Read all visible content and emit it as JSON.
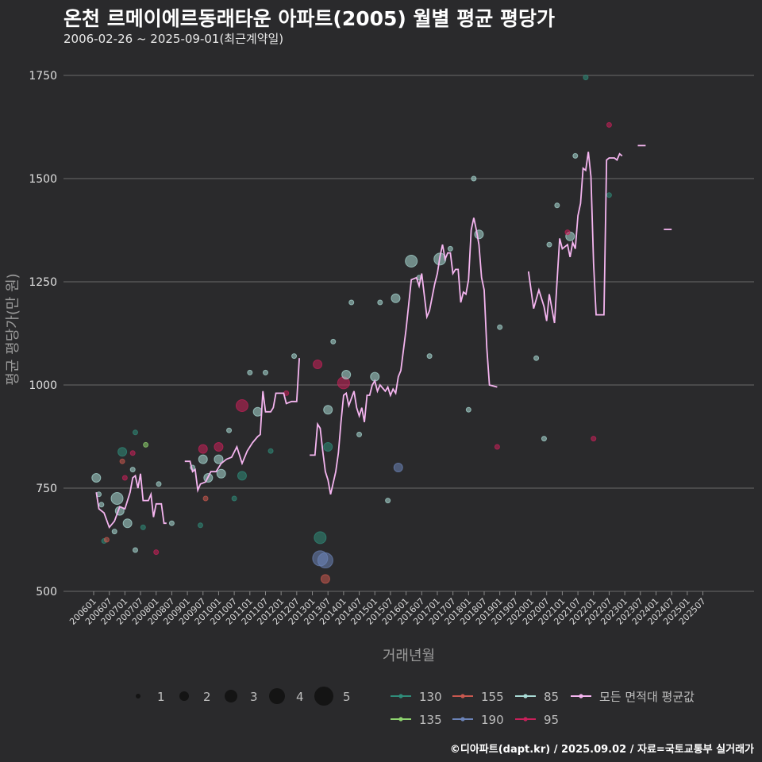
{
  "title": "온천 르메이에르동래타운 아파트(2005) 월별 평균 평당가",
  "subtitle": "2006-02-26 ~ 2025-09-01(최근계약일)",
  "footer": "©디아파트(dapt.kr) / 2025.09.02 / 자료=국토교통부 실거래가",
  "colors": {
    "background": "#2a2a2c",
    "grid": "#6a6a6a",
    "avg_line": "#f5b5f0",
    "s130": "#2f8c7a",
    "s135": "#8ed36f",
    "s155": "#c9584f",
    "s190": "#6b83b8",
    "s85": "#a9dbd6",
    "s95": "#c8205a"
  },
  "chart_data": {
    "type": "scatter+line",
    "xlabel": "거래년월",
    "ylabel": "평균 평당가(만 원)",
    "ylim": [
      500,
      1750
    ],
    "yticks": [
      "500",
      "750",
      "1000",
      "1250",
      "1500",
      "1750"
    ],
    "xlim": [
      "200601",
      "202507"
    ],
    "xticks": [
      "200601",
      "200607",
      "200701",
      "200707",
      "200801",
      "200807",
      "200901",
      "200907",
      "201001",
      "201007",
      "201101",
      "201107",
      "201201",
      "201207",
      "201301",
      "201307",
      "201401",
      "201407",
      "201501",
      "201507",
      "201601",
      "201607",
      "201701",
      "201707",
      "201801",
      "201807",
      "201901",
      "201907",
      "202001",
      "202007",
      "202101",
      "202107",
      "202201",
      "202207",
      "202301",
      "202307",
      "202401",
      "202407",
      "202501",
      "202507"
    ],
    "size_legend": {
      "labels": [
        "1",
        "2",
        "3",
        "4",
        "5"
      ]
    },
    "series_legend": [
      {
        "label": "130",
        "color_key": "s130"
      },
      {
        "label": "155",
        "color_key": "s155"
      },
      {
        "label": "85",
        "color_key": "s85"
      },
      {
        "label": "모든 면적대 평균값",
        "color_key": "avg_line"
      },
      {
        "label": "135",
        "color_key": "s135"
      },
      {
        "label": "190",
        "color_key": "s190"
      },
      {
        "label": "95",
        "color_key": "s95"
      }
    ],
    "avg_line_segments": [
      [
        [
          "2006-02",
          740
        ],
        [
          "2006-03",
          700
        ],
        [
          "2006-05",
          690
        ],
        [
          "2006-07",
          655
        ],
        [
          "2006-09",
          670
        ],
        [
          "2006-11",
          705
        ],
        [
          "2007-01",
          700
        ],
        [
          "2007-03",
          740
        ],
        [
          "2007-04",
          775
        ],
        [
          "2007-05",
          780
        ],
        [
          "2007-06",
          750
        ],
        [
          "2007-07",
          785
        ],
        [
          "2007-08",
          720
        ],
        [
          "2007-10",
          720
        ],
        [
          "2007-11",
          735
        ],
        [
          "2007-12",
          680
        ],
        [
          "2008-01",
          712
        ],
        [
          "2008-03",
          712
        ],
        [
          "2008-04",
          665
        ],
        [
          "2008-05",
          665
        ]
      ],
      [
        [
          "2008-12",
          815
        ],
        [
          "2009-02",
          815
        ],
        [
          "2009-03",
          790
        ],
        [
          "2009-04",
          795
        ],
        [
          "2009-05",
          745
        ],
        [
          "2009-06",
          760
        ],
        [
          "2009-08",
          765
        ],
        [
          "2009-10",
          790
        ],
        [
          "2009-12",
          790
        ],
        [
          "2010-02",
          810
        ],
        [
          "2010-04",
          820
        ],
        [
          "2010-06",
          825
        ],
        [
          "2010-08",
          850
        ],
        [
          "2010-10",
          810
        ],
        [
          "2010-12",
          840
        ],
        [
          "2011-02",
          860
        ],
        [
          "2011-04",
          875
        ],
        [
          "2011-05",
          880
        ],
        [
          "2011-06",
          985
        ],
        [
          "2011-07",
          935
        ],
        [
          "2011-09",
          935
        ],
        [
          "2011-10",
          945
        ],
        [
          "2011-11",
          980
        ],
        [
          "2012-02",
          980
        ],
        [
          "2012-03",
          955
        ],
        [
          "2012-05",
          960
        ],
        [
          "2012-07",
          960
        ],
        [
          "2012-08",
          1065
        ]
      ],
      [
        [
          "2012-12",
          830
        ],
        [
          "2013-02",
          830
        ],
        [
          "2013-03",
          905
        ],
        [
          "2013-04",
          895
        ],
        [
          "2013-05",
          840
        ],
        [
          "2013-06",
          790
        ],
        [
          "2013-07",
          770
        ],
        [
          "2013-08",
          735
        ],
        [
          "2013-10",
          790
        ],
        [
          "2013-11",
          835
        ],
        [
          "2013-12",
          910
        ],
        [
          "2014-01",
          975
        ],
        [
          "2014-02",
          980
        ],
        [
          "2014-03",
          950
        ],
        [
          "2014-05",
          985
        ],
        [
          "2014-06",
          945
        ],
        [
          "2014-07",
          925
        ],
        [
          "2014-08",
          945
        ],
        [
          "2014-09",
          910
        ],
        [
          "2014-10",
          975
        ],
        [
          "2014-11",
          975
        ],
        [
          "2014-12",
          1000
        ],
        [
          "2015-01",
          1010
        ],
        [
          "2015-02",
          985
        ],
        [
          "2015-03",
          1000
        ],
        [
          "2015-05",
          985
        ],
        [
          "2015-06",
          995
        ],
        [
          "2015-07",
          975
        ],
        [
          "2015-08",
          990
        ],
        [
          "2015-09",
          980
        ],
        [
          "2015-10",
          1020
        ],
        [
          "2015-11",
          1035
        ],
        [
          "2016-01",
          1135
        ],
        [
          "2016-03",
          1255
        ],
        [
          "2016-05",
          1260
        ],
        [
          "2016-06",
          1240
        ],
        [
          "2016-07",
          1270
        ],
        [
          "2016-09",
          1165
        ],
        [
          "2016-10",
          1180
        ],
        [
          "2016-12",
          1245
        ],
        [
          "2017-01",
          1270
        ],
        [
          "2017-02",
          1310
        ],
        [
          "2017-03",
          1340
        ],
        [
          "2017-04",
          1305
        ],
        [
          "2017-05",
          1320
        ],
        [
          "2017-06",
          1320
        ],
        [
          "2017-07",
          1270
        ],
        [
          "2017-08",
          1280
        ],
        [
          "2017-09",
          1280
        ],
        [
          "2017-10",
          1200
        ],
        [
          "2017-11",
          1225
        ],
        [
          "2017-12",
          1220
        ],
        [
          "2018-01",
          1255
        ],
        [
          "2018-02",
          1375
        ],
        [
          "2018-03",
          1405
        ],
        [
          "2018-04",
          1375
        ],
        [
          "2018-05",
          1340
        ],
        [
          "2018-06",
          1260
        ],
        [
          "2018-07",
          1230
        ],
        [
          "2018-08",
          1090
        ],
        [
          "2018-09",
          1000
        ],
        [
          "2018-12",
          995
        ]
      ],
      [
        [
          "2019-12",
          1275
        ],
        [
          "2020-02",
          1185
        ],
        [
          "2020-04",
          1230
        ],
        [
          "2020-06",
          1190
        ],
        [
          "2020-07",
          1155
        ],
        [
          "2020-08",
          1220
        ],
        [
          "2020-10",
          1150
        ],
        [
          "2020-12",
          1355
        ],
        [
          "2021-01",
          1330
        ],
        [
          "2021-03",
          1340
        ],
        [
          "2021-04",
          1310
        ],
        [
          "2021-05",
          1345
        ],
        [
          "2021-06",
          1330
        ],
        [
          "2021-07",
          1410
        ],
        [
          "2021-08",
          1440
        ],
        [
          "2021-09",
          1525
        ],
        [
          "2021-10",
          1520
        ],
        [
          "2021-11",
          1565
        ],
        [
          "2021-12",
          1505
        ],
        [
          "2022-01",
          1295
        ],
        [
          "2022-02",
          1170
        ],
        [
          "2022-05",
          1170
        ],
        [
          "2022-06",
          1545
        ],
        [
          "2022-07",
          1550
        ],
        [
          "2022-09",
          1550
        ],
        [
          "2022-10",
          1545
        ],
        [
          "2022-11",
          1560
        ],
        [
          "2022-12",
          1555
        ]
      ],
      [
        [
          "2023-06",
          1580
        ],
        [
          "2023-09",
          1580
        ]
      ],
      [
        [
          "2024-04",
          1377
        ],
        [
          "2024-07",
          1377
        ]
      ]
    ],
    "points": [
      {
        "s": "s85",
        "t": "2006-02",
        "v": 775,
        "n": 2
      },
      {
        "s": "s85",
        "t": "2006-03",
        "v": 735,
        "n": 1
      },
      {
        "s": "s85",
        "t": "2006-04",
        "v": 710,
        "n": 1
      },
      {
        "s": "s130",
        "t": "2006-05",
        "v": 622,
        "n": 1
      },
      {
        "s": "s155",
        "t": "2006-06",
        "v": 625,
        "n": 1
      },
      {
        "s": "s85",
        "t": "2006-09",
        "v": 645,
        "n": 1
      },
      {
        "s": "s85",
        "t": "2006-10",
        "v": 725,
        "n": 3
      },
      {
        "s": "s85",
        "t": "2006-11",
        "v": 695,
        "n": 2
      },
      {
        "s": "s130",
        "t": "2006-12",
        "v": 838,
        "n": 2
      },
      {
        "s": "s95",
        "t": "2007-01",
        "v": 775,
        "n": 1
      },
      {
        "s": "s155",
        "t": "2006-12",
        "v": 815,
        "n": 1
      },
      {
        "s": "s85",
        "t": "2007-02",
        "v": 665,
        "n": 2
      },
      {
        "s": "s85",
        "t": "2007-04",
        "v": 795,
        "n": 1
      },
      {
        "s": "s130",
        "t": "2007-05",
        "v": 885,
        "n": 1
      },
      {
        "s": "s95",
        "t": "2007-04",
        "v": 835,
        "n": 1
      },
      {
        "s": "s85",
        "t": "2007-05",
        "v": 600,
        "n": 1
      },
      {
        "s": "s130",
        "t": "2007-08",
        "v": 655,
        "n": 1
      },
      {
        "s": "s135",
        "t": "2007-09",
        "v": 855,
        "n": 1
      },
      {
        "s": "s95",
        "t": "2008-01",
        "v": 595,
        "n": 1
      },
      {
        "s": "s85",
        "t": "2008-02",
        "v": 760,
        "n": 1
      },
      {
        "s": "s85",
        "t": "2008-07",
        "v": 665,
        "n": 1
      },
      {
        "s": "s85",
        "t": "2009-03",
        "v": 800,
        "n": 1
      },
      {
        "s": "s130",
        "t": "2009-06",
        "v": 660,
        "n": 1
      },
      {
        "s": "s95",
        "t": "2009-07",
        "v": 845,
        "n": 2
      },
      {
        "s": "s85",
        "t": "2009-07",
        "v": 820,
        "n": 2
      },
      {
        "s": "s155",
        "t": "2009-08",
        "v": 725,
        "n": 1
      },
      {
        "s": "s85",
        "t": "2009-09",
        "v": 775,
        "n": 2
      },
      {
        "s": "s85",
        "t": "2010-01",
        "v": 820,
        "n": 2
      },
      {
        "s": "s95",
        "t": "2010-01",
        "v": 850,
        "n": 2
      },
      {
        "s": "s85",
        "t": "2010-02",
        "v": 785,
        "n": 2
      },
      {
        "s": "s85",
        "t": "2010-05",
        "v": 890,
        "n": 1
      },
      {
        "s": "s130",
        "t": "2010-07",
        "v": 725,
        "n": 1
      },
      {
        "s": "s95",
        "t": "2010-10",
        "v": 950,
        "n": 3
      },
      {
        "s": "s130",
        "t": "2010-10",
        "v": 780,
        "n": 2
      },
      {
        "s": "s85",
        "t": "2011-01",
        "v": 1030,
        "n": 1
      },
      {
        "s": "s85",
        "t": "2011-04",
        "v": 935,
        "n": 2
      },
      {
        "s": "s85",
        "t": "2011-07",
        "v": 1030,
        "n": 1
      },
      {
        "s": "s130",
        "t": "2011-09",
        "v": 840,
        "n": 1
      },
      {
        "s": "s95",
        "t": "2012-03",
        "v": 980,
        "n": 1
      },
      {
        "s": "s85",
        "t": "2012-06",
        "v": 1070,
        "n": 1
      },
      {
        "s": "s95",
        "t": "2013-03",
        "v": 1050,
        "n": 2
      },
      {
        "s": "s130",
        "t": "2013-04",
        "v": 630,
        "n": 3
      },
      {
        "s": "s190",
        "t": "2013-04",
        "v": 580,
        "n": 4
      },
      {
        "s": "s190",
        "t": "2013-06",
        "v": 575,
        "n": 4
      },
      {
        "s": "s155",
        "t": "2013-06",
        "v": 530,
        "n": 2
      },
      {
        "s": "s85",
        "t": "2013-07",
        "v": 940,
        "n": 2
      },
      {
        "s": "s130",
        "t": "2013-07",
        "v": 850,
        "n": 2
      },
      {
        "s": "s85",
        "t": "2013-09",
        "v": 1105,
        "n": 1
      },
      {
        "s": "s95",
        "t": "2014-01",
        "v": 1005,
        "n": 3
      },
      {
        "s": "s85",
        "t": "2014-02",
        "v": 1025,
        "n": 2
      },
      {
        "s": "s85",
        "t": "2014-04",
        "v": 1200,
        "n": 1
      },
      {
        "s": "s85",
        "t": "2014-07",
        "v": 880,
        "n": 1
      },
      {
        "s": "s85",
        "t": "2015-01",
        "v": 1020,
        "n": 2
      },
      {
        "s": "s85",
        "t": "2015-03",
        "v": 1200,
        "n": 1
      },
      {
        "s": "s85",
        "t": "2015-06",
        "v": 720,
        "n": 1
      },
      {
        "s": "s190",
        "t": "2015-10",
        "v": 800,
        "n": 2
      },
      {
        "s": "s85",
        "t": "2015-09",
        "v": 1210,
        "n": 2
      },
      {
        "s": "s85",
        "t": "2016-03",
        "v": 1300,
        "n": 3
      },
      {
        "s": "s85",
        "t": "2016-06",
        "v": 1260,
        "n": 1
      },
      {
        "s": "s85",
        "t": "2016-10",
        "v": 1070,
        "n": 1
      },
      {
        "s": "s85",
        "t": "2017-02",
        "v": 1305,
        "n": 3
      },
      {
        "s": "s85",
        "t": "2017-06",
        "v": 1330,
        "n": 1
      },
      {
        "s": "s85",
        "t": "2018-01",
        "v": 940,
        "n": 1
      },
      {
        "s": "s85",
        "t": "2018-03",
        "v": 1500,
        "n": 1
      },
      {
        "s": "s85",
        "t": "2018-05",
        "v": 1365,
        "n": 2
      },
      {
        "s": "s95",
        "t": "2018-12",
        "v": 850,
        "n": 1
      },
      {
        "s": "s85",
        "t": "2019-01",
        "v": 1140,
        "n": 1
      },
      {
        "s": "s85",
        "t": "2020-03",
        "v": 1065,
        "n": 1
      },
      {
        "s": "s85",
        "t": "2020-08",
        "v": 1340,
        "n": 1
      },
      {
        "s": "s85",
        "t": "2020-11",
        "v": 1435,
        "n": 1
      },
      {
        "s": "s85",
        "t": "2021-04",
        "v": 1360,
        "n": 2
      },
      {
        "s": "s85",
        "t": "2021-06",
        "v": 1555,
        "n": 1
      },
      {
        "s": "s130",
        "t": "2021-10",
        "v": 1745,
        "n": 1
      },
      {
        "s": "s95",
        "t": "2022-01",
        "v": 870,
        "n": 1
      },
      {
        "s": "s95",
        "t": "2022-07",
        "v": 1630,
        "n": 1
      },
      {
        "s": "s130",
        "t": "2022-07",
        "v": 1460,
        "n": 1
      },
      {
        "s": "s85",
        "t": "2020-06",
        "v": 870,
        "n": 1
      },
      {
        "s": "s95",
        "t": "2021-03",
        "v": 1370,
        "n": 1
      }
    ]
  }
}
